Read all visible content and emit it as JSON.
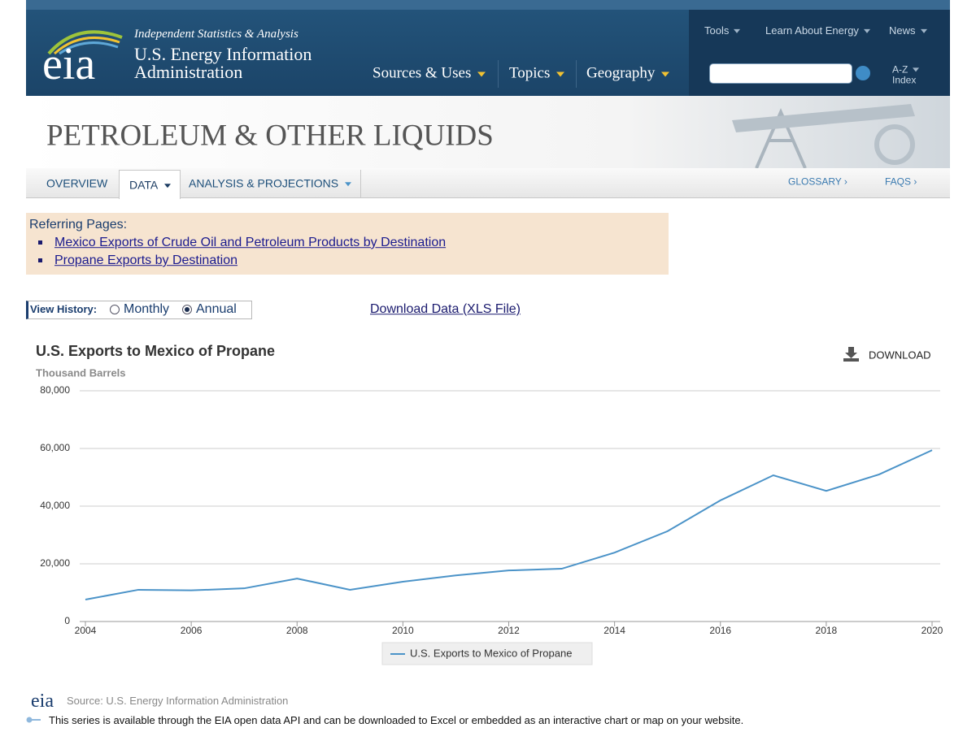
{
  "header": {
    "logo": "eia",
    "tagline": "Independent Statistics & Analysis",
    "org_line1": "U.S. Energy Information",
    "org_line2": "Administration",
    "utility_nav": [
      "Tools",
      "Learn About Energy",
      "News"
    ],
    "main_nav": [
      "Sources & Uses",
      "Topics",
      "Geography"
    ],
    "az": "A-Z",
    "index": "Index"
  },
  "banner": {
    "title": "PETROLEUM & OTHER LIQUIDS"
  },
  "tabs": {
    "left": [
      "OVERVIEW",
      "DATA",
      "ANALYSIS & PROJECTIONS"
    ],
    "right": [
      "GLOSSARY ›",
      "FAQS ›"
    ]
  },
  "referring": {
    "heading": "Referring Pages:",
    "links": [
      "Mexico Exports of Crude Oil and Petroleum Products by Destination",
      "Propane Exports by Destination"
    ]
  },
  "view_history": {
    "label": "View History:",
    "options": [
      "Monthly",
      "Annual"
    ],
    "selected": "Annual"
  },
  "download_data": "Download Data (XLS File)",
  "download_button": "DOWNLOAD",
  "chart_data": {
    "type": "line",
    "title": "U.S. Exports to Mexico of Propane",
    "y_label": "Thousand Barrels",
    "x": [
      2004,
      2005,
      2006,
      2007,
      2008,
      2009,
      2010,
      2011,
      2012,
      2013,
      2014,
      2015,
      2016,
      2017,
      2018,
      2019,
      2020
    ],
    "xlim": [
      2004,
      2020
    ],
    "xticks": [
      2004,
      2006,
      2008,
      2010,
      2012,
      2014,
      2016,
      2018,
      2020
    ],
    "ylim": [
      0,
      80000
    ],
    "yticks": [
      0,
      {
        "value": 20000,
        "label": "20,000"
      },
      {
        "value": 40000,
        "label": "40,000"
      },
      {
        "value": 60000,
        "label": "60,000"
      },
      {
        "value": 80000,
        "label": "80,000"
      }
    ],
    "grid": true,
    "series": [
      {
        "name": "U.S. Exports to Mexico of Propane",
        "color": "#4b93c8",
        "values": [
          7600,
          11000,
          10800,
          11500,
          14900,
          11000,
          13800,
          16000,
          17700,
          18300,
          23900,
          31300,
          42000,
          50700,
          45300,
          51000,
          59400
        ]
      }
    ]
  },
  "footer": {
    "logo": "eia",
    "source": "Source: U.S. Energy Information Administration",
    "api_note": "This series is available through the EIA open data API and can be downloaded to Excel or embedded as an interactive chart or map on your website."
  }
}
